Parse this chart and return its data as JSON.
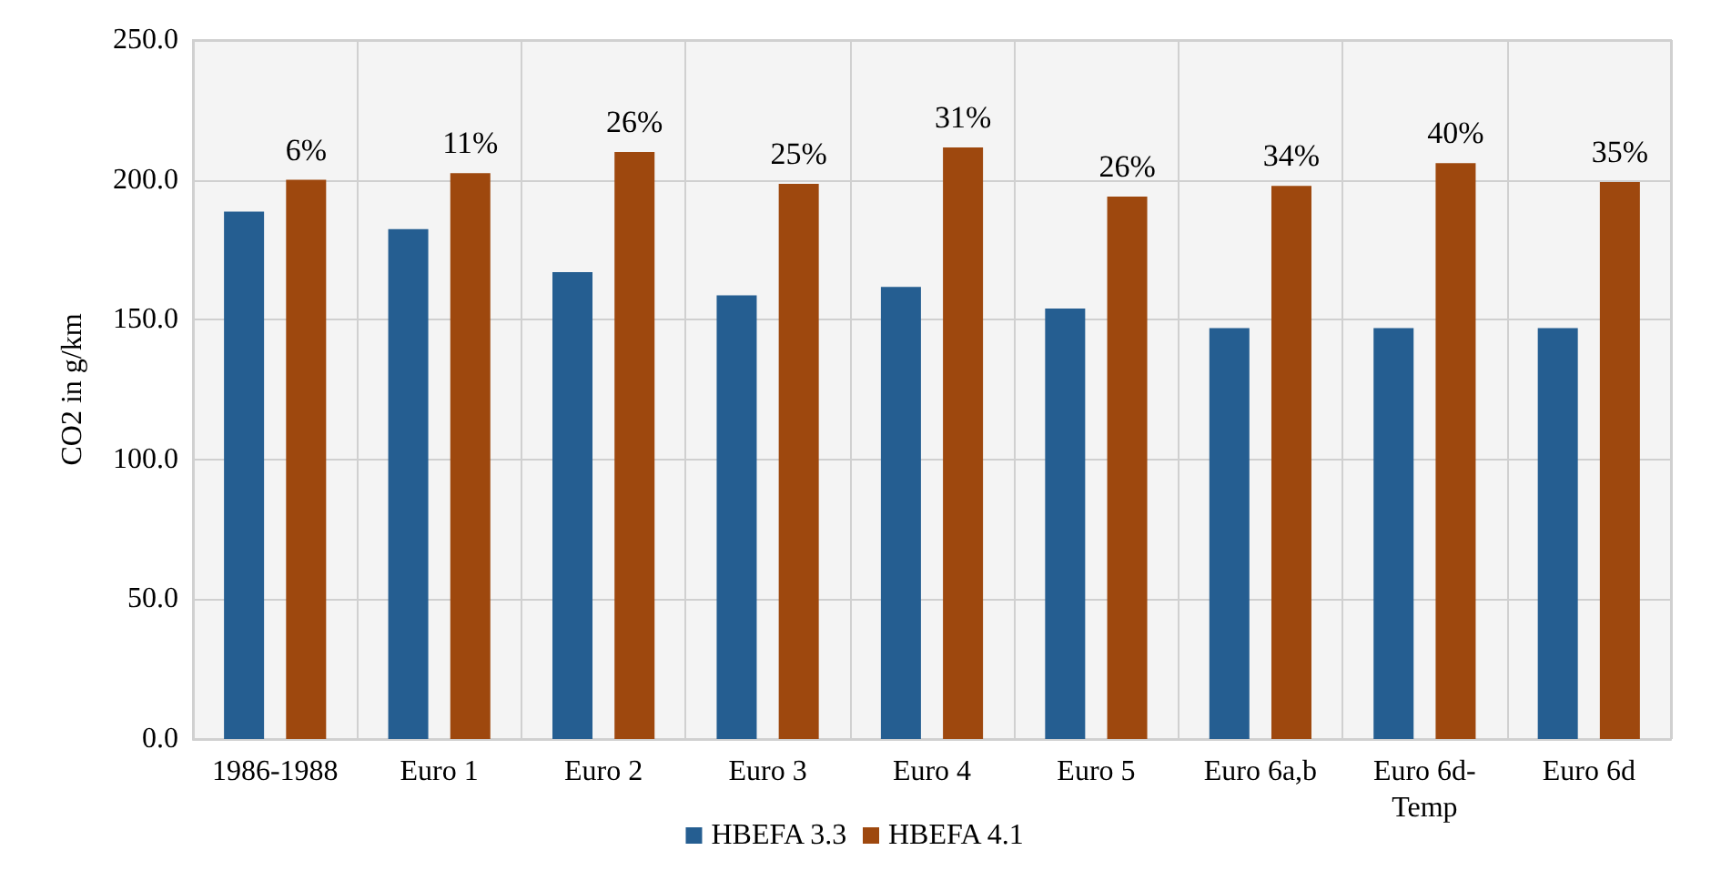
{
  "chart_data": {
    "type": "bar",
    "ylabel": "CO2 in g/km",
    "categories": [
      "1986-1988",
      "Euro 1",
      "Euro 2",
      "Euro 3",
      "Euro 4",
      "Euro 5",
      "Euro 6a,b",
      "Euro 6d-\nTemp",
      "Euro 6d"
    ],
    "series": [
      {
        "name": "HBEFA 3.3",
        "color": "#255e91",
        "values": [
          188.6,
          182.4,
          167,
          158.7,
          161.7,
          154,
          147,
          147,
          147
        ]
      },
      {
        "name": "HBEFA 4.1",
        "color": "#9e480e",
        "values": [
          200,
          202.4,
          210,
          198.6,
          211.6,
          194,
          197.8,
          206,
          199.2
        ]
      }
    ],
    "annotations": [
      "6%",
      "11%",
      "26%",
      "25%",
      "31%",
      "26%",
      "34%",
      "40%",
      "35%"
    ],
    "ylim": [
      0,
      250
    ],
    "yticks": [
      {
        "value": 0,
        "label": "0.0"
      },
      {
        "value": 50,
        "label": "50.0"
      },
      {
        "value": 100,
        "label": "100.0"
      },
      {
        "value": 150,
        "label": "150.0"
      },
      {
        "value": 200,
        "label": "200.0"
      },
      {
        "value": 250,
        "label": "250.0"
      }
    ],
    "grid": true,
    "legend": "bottom"
  }
}
